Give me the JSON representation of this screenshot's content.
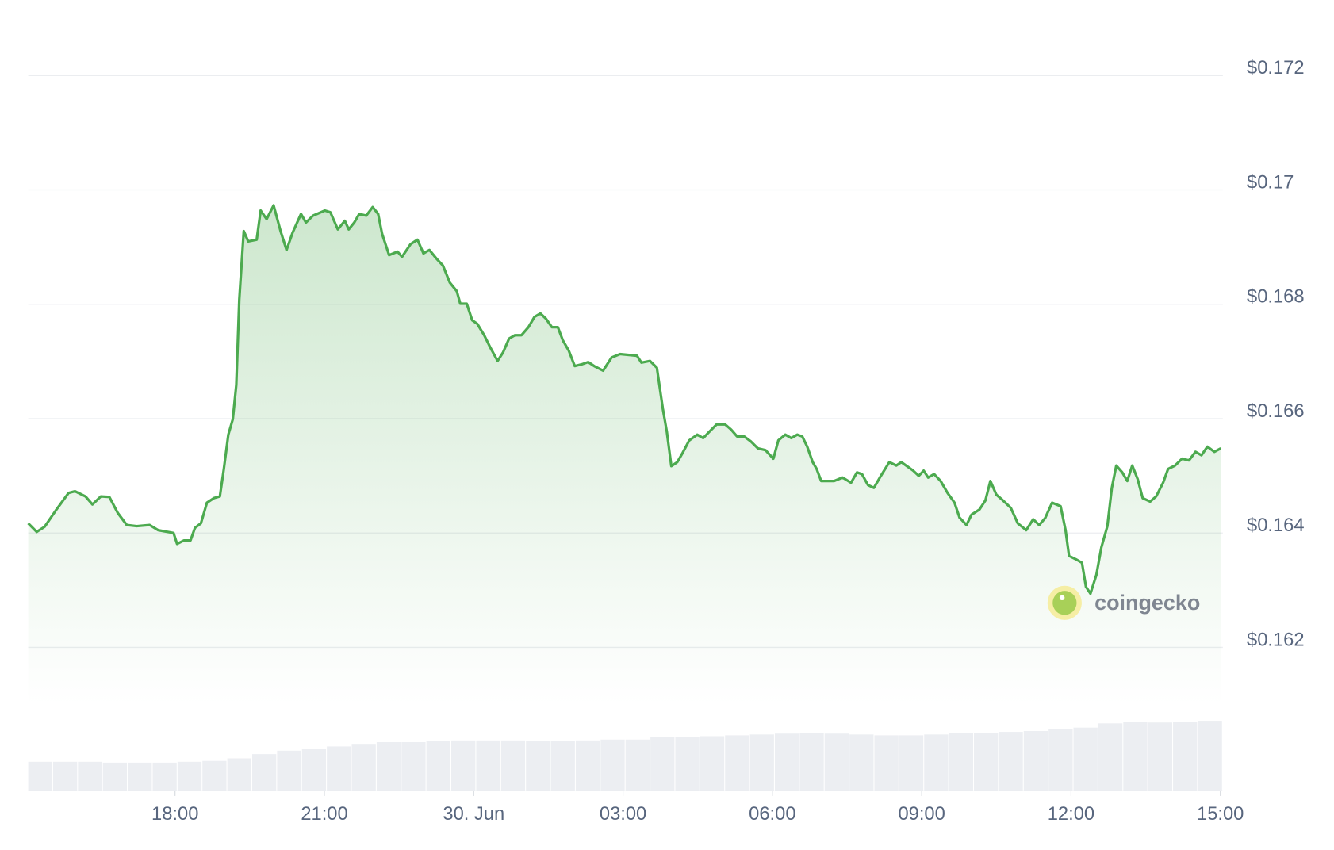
{
  "chart_data": {
    "type": "line",
    "color": "#4caa4f",
    "watermark": "coingecko",
    "xlim": [
      15.05,
      39.05
    ],
    "xticks": [
      {
        "value": 18,
        "label": "18:00"
      },
      {
        "value": 21,
        "label": "21:00"
      },
      {
        "value": 24,
        "label": "30. Jun"
      },
      {
        "value": 27,
        "label": "03:00"
      },
      {
        "value": 30,
        "label": "06:00"
      },
      {
        "value": 33,
        "label": "09:00"
      },
      {
        "value": 36,
        "label": "12:00"
      },
      {
        "value": 39,
        "label": "15:00"
      }
    ],
    "ylim": [
      0.161,
      0.1732
    ],
    "yticks": [
      {
        "value": 0.162,
        "label": "$0.162"
      },
      {
        "value": 0.164,
        "label": "$0.164"
      },
      {
        "value": 0.166,
        "label": "$0.166"
      },
      {
        "value": 0.168,
        "label": "$0.168"
      },
      {
        "value": 0.17,
        "label": "$0.17"
      },
      {
        "value": 0.172,
        "label": "$0.172"
      }
    ],
    "grid": true,
    "x": [
      15.05,
      15.22,
      15.38,
      15.6,
      15.86,
      15.99,
      16.2,
      16.34,
      16.51,
      16.68,
      16.85,
      17.03,
      17.23,
      17.49,
      17.66,
      17.97,
      18.04,
      18.18,
      18.31,
      18.4,
      18.52,
      18.64,
      18.78,
      18.9,
      18.98,
      19.07,
      19.16,
      19.23,
      19.29,
      19.38,
      19.47,
      19.64,
      19.72,
      19.84,
      19.98,
      20.12,
      20.24,
      20.36,
      20.53,
      20.63,
      20.77,
      21.01,
      21.12,
      21.27,
      21.41,
      21.49,
      21.6,
      21.7,
      21.84,
      21.97,
      22.08,
      22.16,
      22.3,
      22.47,
      22.56,
      22.73,
      22.87,
      22.99,
      23.11,
      23.25,
      23.38,
      23.52,
      23.66,
      23.73,
      23.86,
      23.97,
      24.07,
      24.21,
      24.33,
      24.48,
      24.59,
      24.71,
      24.83,
      24.96,
      25.1,
      25.22,
      25.34,
      25.45,
      25.57,
      25.69,
      25.79,
      25.91,
      26.03,
      26.17,
      26.3,
      26.42,
      26.6,
      26.77,
      26.94,
      27.28,
      27.37,
      27.54,
      27.68,
      27.8,
      27.88,
      27.97,
      28.09,
      28.19,
      28.33,
      28.49,
      28.61,
      28.71,
      28.88,
      29.05,
      29.17,
      29.29,
      29.43,
      29.57,
      29.71,
      29.86,
      30.02,
      30.12,
      30.26,
      30.38,
      30.5,
      30.6,
      30.7,
      30.81,
      30.89,
      30.98,
      31.24,
      31.41,
      31.58,
      31.7,
      31.8,
      31.92,
      32.04,
      32.18,
      32.35,
      32.49,
      32.59,
      32.83,
      32.94,
      33.04,
      33.13,
      33.25,
      33.38,
      33.52,
      33.66,
      33.76,
      33.9,
      34.0,
      34.16,
      34.28,
      34.38,
      34.5,
      34.62,
      34.79,
      34.93,
      35.1,
      35.24,
      35.36,
      35.48,
      35.62,
      35.79,
      35.89,
      35.96,
      36.1,
      36.22,
      36.3,
      36.39,
      36.51,
      36.61,
      36.73,
      36.82,
      36.91,
      37.03,
      37.13,
      37.23,
      37.34,
      37.44,
      37.59,
      37.71,
      37.85,
      37.95,
      38.09,
      38.23,
      38.37,
      38.5,
      38.62,
      38.74,
      38.88,
      39.01
    ],
    "values": [
      0.16417,
      0.16402,
      0.16411,
      0.16439,
      0.1647,
      0.16473,
      0.16464,
      0.1645,
      0.16464,
      0.16463,
      0.16435,
      0.16414,
      0.16412,
      0.16414,
      0.16405,
      0.164,
      0.16381,
      0.16387,
      0.16387,
      0.16409,
      0.16417,
      0.16453,
      0.16461,
      0.16464,
      0.16512,
      0.16572,
      0.16599,
      0.16659,
      0.16808,
      0.16928,
      0.1691,
      0.16913,
      0.16964,
      0.16949,
      0.16973,
      0.16928,
      0.16895,
      0.16925,
      0.16958,
      0.16943,
      0.16955,
      0.16964,
      0.16961,
      0.16931,
      0.16946,
      0.16931,
      0.16943,
      0.16958,
      0.16955,
      0.1697,
      0.16958,
      0.16923,
      0.16886,
      0.16892,
      0.16883,
      0.16905,
      0.16913,
      0.16889,
      0.16895,
      0.1688,
      0.16868,
      0.16838,
      0.16823,
      0.16801,
      0.16801,
      0.16772,
      0.16766,
      0.16746,
      0.16725,
      0.16701,
      0.16716,
      0.1674,
      0.16746,
      0.16746,
      0.1676,
      0.16778,
      0.16784,
      0.16775,
      0.1676,
      0.1676,
      0.16737,
      0.16719,
      0.16692,
      0.16695,
      0.16699,
      0.16692,
      0.16684,
      0.16707,
      0.16713,
      0.1671,
      0.16698,
      0.16701,
      0.16689,
      0.16617,
      0.16577,
      0.16517,
      0.16524,
      0.16539,
      0.16562,
      0.16572,
      0.16566,
      0.16575,
      0.1659,
      0.1659,
      0.16581,
      0.16569,
      0.16569,
      0.1656,
      0.16548,
      0.16545,
      0.1653,
      0.16562,
      0.16572,
      0.16566,
      0.16572,
      0.16569,
      0.16551,
      0.16524,
      0.16512,
      0.16491,
      0.16491,
      0.16497,
      0.16488,
      0.16506,
      0.16503,
      0.16484,
      0.16479,
      0.165,
      0.16524,
      0.16518,
      0.16524,
      0.16509,
      0.165,
      0.16509,
      0.16497,
      0.16503,
      0.16491,
      0.1647,
      0.16453,
      0.16427,
      0.16414,
      0.16432,
      0.16441,
      0.16457,
      0.16491,
      0.16467,
      0.16458,
      0.16444,
      0.16417,
      0.16405,
      0.16424,
      0.16414,
      0.16426,
      0.16453,
      0.16447,
      0.16405,
      0.1636,
      0.16354,
      0.16348,
      0.16306,
      0.16294,
      0.16327,
      0.16375,
      0.16412,
      0.16479,
      0.16518,
      0.16506,
      0.16491,
      0.16518,
      0.16494,
      0.16461,
      0.16455,
      0.16464,
      0.16488,
      0.16512,
      0.16518,
      0.1653,
      0.16527,
      0.16542,
      0.16536,
      0.16551,
      0.16542,
      0.16548
    ],
    "volume": {
      "color": "#eceef2",
      "vlim": [
        0,
        100
      ],
      "x": [
        15.3,
        15.8,
        16.3,
        16.8,
        17.3,
        17.8,
        18.3,
        18.8,
        19.3,
        19.8,
        20.3,
        20.8,
        21.3,
        21.8,
        22.3,
        22.8,
        23.3,
        23.8,
        24.3,
        24.8,
        25.3,
        25.8,
        26.3,
        26.8,
        27.3,
        27.8,
        28.3,
        28.8,
        29.3,
        29.8,
        30.3,
        30.8,
        31.3,
        31.8,
        32.3,
        32.8,
        33.3,
        33.8,
        34.3,
        34.8,
        35.3,
        35.8,
        36.3,
        36.8,
        37.3,
        37.8,
        38.3,
        38.8
      ],
      "values": [
        34,
        34,
        34,
        33,
        33,
        33,
        34,
        35,
        38,
        43,
        47,
        49,
        52,
        55,
        57,
        57,
        58,
        59,
        59,
        59,
        58,
        58,
        59,
        60,
        60,
        63,
        63,
        64,
        65,
        66,
        67,
        68,
        67,
        66,
        65,
        65,
        66,
        68,
        68,
        69,
        70,
        72,
        74,
        79,
        81,
        80,
        81,
        82
      ]
    }
  }
}
